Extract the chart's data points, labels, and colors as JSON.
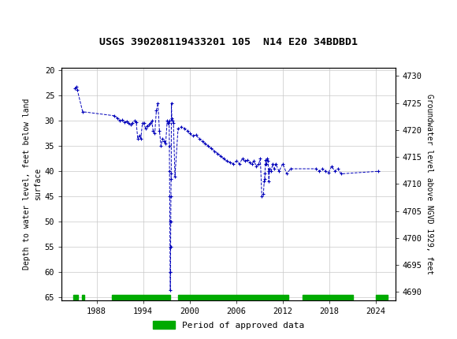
{
  "title": "USGS 390208119433201 105  N14 E20 34BDBD1",
  "ylabel_left": "Depth to water level, feet below land\nsurface",
  "ylabel_right": "Groundwater level above NGVD 1929, feet",
  "ylim_left": [
    65.5,
    19.5
  ],
  "ylim_right": [
    4688.5,
    4731.5
  ],
  "xlim": [
    1983.5,
    2026.5
  ],
  "xticks": [
    1988,
    1994,
    2000,
    2006,
    2012,
    2018,
    2024
  ],
  "yticks_left": [
    20,
    25,
    30,
    35,
    40,
    45,
    50,
    55,
    60,
    65
  ],
  "yticks_right": [
    4690,
    4695,
    4700,
    4705,
    4710,
    4715,
    4720,
    4725,
    4730
  ],
  "line_color": "#0000BB",
  "bg_color": "#ffffff",
  "grid_color": "#c8c8c8",
  "header_color": "#1e6b3e",
  "legend_color": "#00aa00",
  "data_x": [
    1985.2,
    1985.35,
    1985.5,
    1986.2,
    1990.3,
    1990.7,
    1991.0,
    1991.3,
    1991.6,
    1991.9,
    1992.1,
    1992.4,
    1992.6,
    1992.9,
    1993.1,
    1993.3,
    1993.5,
    1993.7,
    1993.9,
    1994.1,
    1994.3,
    1994.5,
    1994.7,
    1994.9,
    1995.1,
    1995.3,
    1995.5,
    1995.7,
    1995.9,
    1996.1,
    1996.3,
    1996.5,
    1996.7,
    1996.9,
    1997.1,
    1997.2,
    1997.3,
    1997.35,
    1997.38,
    1997.4,
    1997.42,
    1997.44,
    1997.46,
    1997.48,
    1997.5,
    1997.52,
    1997.54,
    1997.56,
    1997.58,
    1997.6,
    1997.62,
    1997.64,
    1997.7,
    1997.8,
    1997.9,
    1998.1,
    1998.5,
    1998.9,
    1999.3,
    1999.7,
    2000.0,
    2000.4,
    2000.8,
    2001.2,
    2001.6,
    2002.0,
    2002.4,
    2002.8,
    2003.2,
    2003.6,
    2004.0,
    2004.4,
    2004.8,
    2005.2,
    2005.6,
    2006.0,
    2006.4,
    2006.8,
    2007.1,
    2007.4,
    2007.7,
    2008.0,
    2008.3,
    2008.6,
    2008.9,
    2009.1,
    2009.3,
    2009.5,
    2009.6,
    2009.65,
    2009.7,
    2009.75,
    2009.8,
    2009.9,
    2010.0,
    2010.1,
    2010.15,
    2010.2,
    2010.3,
    2010.5,
    2010.7,
    2010.9,
    2011.1,
    2011.5,
    2012.0,
    2012.5,
    2013.0,
    2016.3,
    2016.7,
    2017.1,
    2017.5,
    2017.9,
    2018.3,
    2018.7,
    2019.1,
    2019.5,
    2024.3
  ],
  "data_y": [
    23.5,
    23.3,
    23.8,
    28.2,
    29.0,
    29.5,
    30.0,
    29.8,
    30.3,
    30.1,
    30.5,
    30.8,
    30.4,
    30.0,
    30.2,
    33.5,
    33.0,
    33.5,
    30.5,
    30.5,
    31.5,
    31.0,
    30.8,
    30.5,
    30.0,
    32.0,
    32.5,
    28.0,
    26.5,
    32.0,
    35.0,
    33.5,
    34.0,
    34.5,
    30.0,
    30.5,
    30.5,
    30.0,
    35.0,
    40.0,
    45.0,
    50.0,
    55.0,
    60.0,
    63.5,
    60.0,
    55.0,
    50.0,
    45.0,
    41.5,
    40.5,
    26.5,
    29.5,
    30.0,
    30.5,
    41.0,
    31.5,
    31.2,
    31.5,
    32.0,
    32.5,
    33.0,
    32.8,
    33.5,
    34.0,
    34.5,
    35.0,
    35.5,
    36.0,
    36.5,
    37.0,
    37.5,
    38.0,
    38.2,
    38.5,
    38.0,
    38.5,
    37.5,
    38.0,
    37.8,
    38.2,
    38.5,
    38.0,
    39.0,
    38.5,
    37.5,
    45.0,
    44.5,
    42.0,
    41.5,
    40.5,
    38.5,
    37.8,
    38.5,
    37.5,
    38.0,
    40.0,
    42.0,
    39.5,
    40.0,
    38.5,
    39.5,
    38.5,
    40.0,
    38.5,
    40.5,
    39.5,
    39.5,
    40.0,
    39.5,
    40.0,
    40.2,
    39.0,
    40.0,
    39.5,
    40.5,
    40.0
  ],
  "green_bars": [
    [
      1985.0,
      1985.65
    ],
    [
      1986.1,
      1986.4
    ],
    [
      1990.0,
      1997.5
    ],
    [
      1998.5,
      2012.7
    ],
    [
      2014.5,
      2021.0
    ],
    [
      2024.0,
      2025.5
    ]
  ]
}
